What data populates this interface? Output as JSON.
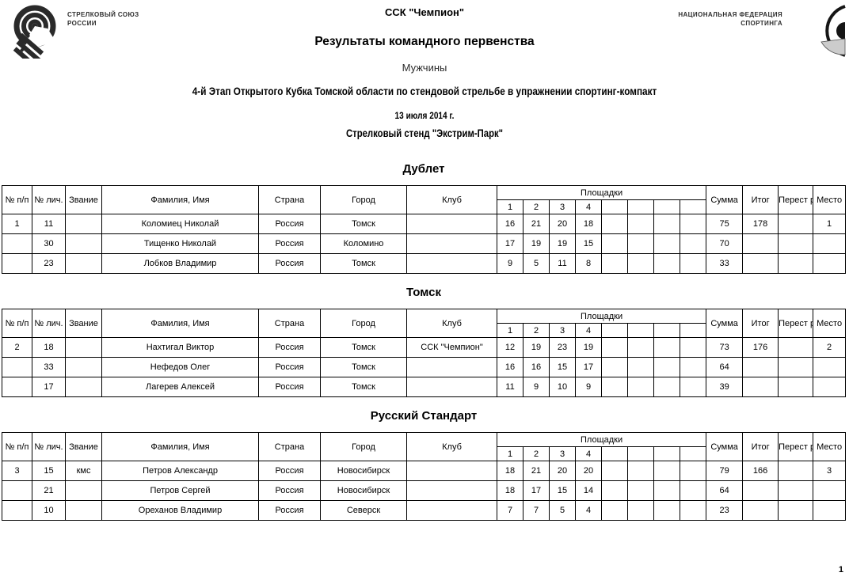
{
  "header": {
    "left_org": {
      "line1": "СТРЕЛКОВЫЙ СОЮЗ",
      "line2": "РОССИИ"
    },
    "right_org": {
      "line1": "НАЦИОНАЛЬНАЯ ФЕДЕРАЦИЯ",
      "line2": "СПОРТИНГА"
    },
    "club": "ССК \"Чемпион\"",
    "title": "Результаты командного первенства",
    "category": "Мужчины",
    "event": "4-й Этап Открытого Кубка Томской области по стендовой стрельбе в упражнении спортинг-компакт",
    "date": "13 июля 2014 г.",
    "venue": "Стрелковый стенд \"Экстрим-Парк\""
  },
  "icons": {
    "left_logo": "shooting-union-target-logo",
    "right_logo": "sporting-federation-clay-logo"
  },
  "table_headers": {
    "num_pp": [
      "№",
      "п/п"
    ],
    "num_lich": [
      "№",
      "лич."
    ],
    "rank": "Звание",
    "name": "Фамилия, Имя",
    "country": "Страна",
    "city": "Город",
    "club": "Клуб",
    "stations_group": "Площадки",
    "station_labels": [
      "1",
      "2",
      "3",
      "4",
      "",
      "",
      "",
      ""
    ],
    "sum": "Сумма",
    "total": "Итог",
    "shootoff": [
      "Перест",
      "релка"
    ],
    "place": "Место"
  },
  "tables": [
    {
      "title": "Дублет",
      "team_number": "1",
      "total": "178",
      "shootoff": "",
      "place": "1",
      "rows": [
        {
          "id": "11",
          "rank": "",
          "name": "Коломиец Николай",
          "country": "Россия",
          "city": "Томск",
          "club": "",
          "stations": [
            "16",
            "21",
            "20",
            "18",
            "",
            "",
            "",
            ""
          ],
          "sum": "75"
        },
        {
          "id": "30",
          "rank": "",
          "name": "Тищенко Николай",
          "country": "Россия",
          "city": "Коломино",
          "club": "",
          "stations": [
            "17",
            "19",
            "19",
            "15",
            "",
            "",
            "",
            ""
          ],
          "sum": "70"
        },
        {
          "id": "23",
          "rank": "",
          "name": "Лобков Владимир",
          "country": "Россия",
          "city": "Томск",
          "club": "",
          "stations": [
            "9",
            "5",
            "11",
            "8",
            "",
            "",
            "",
            ""
          ],
          "sum": "33"
        }
      ]
    },
    {
      "title": "Томск",
      "team_number": "2",
      "total": "176",
      "shootoff": "",
      "place": "2",
      "rows": [
        {
          "id": "18",
          "rank": "",
          "name": "Нахтигал Виктор",
          "country": "Россия",
          "city": "Томск",
          "club": "ССК \"Чемпион\"",
          "stations": [
            "12",
            "19",
            "23",
            "19",
            "",
            "",
            "",
            ""
          ],
          "sum": "73"
        },
        {
          "id": "33",
          "rank": "",
          "name": "Нефедов Олег",
          "country": "Россия",
          "city": "Томск",
          "club": "",
          "stations": [
            "16",
            "16",
            "15",
            "17",
            "",
            "",
            "",
            ""
          ],
          "sum": "64"
        },
        {
          "id": "17",
          "rank": "",
          "name": "Лагерев Алексей",
          "country": "Россия",
          "city": "Томск",
          "club": "",
          "stations": [
            "11",
            "9",
            "10",
            "9",
            "",
            "",
            "",
            ""
          ],
          "sum": "39"
        }
      ]
    },
    {
      "title": "Русский Стандарт",
      "team_number": "3",
      "total": "166",
      "shootoff": "",
      "place": "3",
      "rows": [
        {
          "id": "15",
          "rank": "кмс",
          "name": "Петров Александр",
          "country": "Россия",
          "city": "Новосибирск",
          "club": "",
          "stations": [
            "18",
            "21",
            "20",
            "20",
            "",
            "",
            "",
            ""
          ],
          "sum": "79"
        },
        {
          "id": "21",
          "rank": "",
          "name": "Петров Сергей",
          "country": "Россия",
          "city": "Новосибирск",
          "club": "",
          "stations": [
            "18",
            "17",
            "15",
            "14",
            "",
            "",
            "",
            ""
          ],
          "sum": "64"
        },
        {
          "id": "10",
          "rank": "",
          "name": "Ореханов Владимир",
          "country": "Россия",
          "city": "Северск",
          "club": "",
          "stations": [
            "7",
            "7",
            "5",
            "4",
            "",
            "",
            "",
            ""
          ],
          "sum": "23"
        }
      ]
    }
  ],
  "footer": {
    "page_number": "1"
  }
}
